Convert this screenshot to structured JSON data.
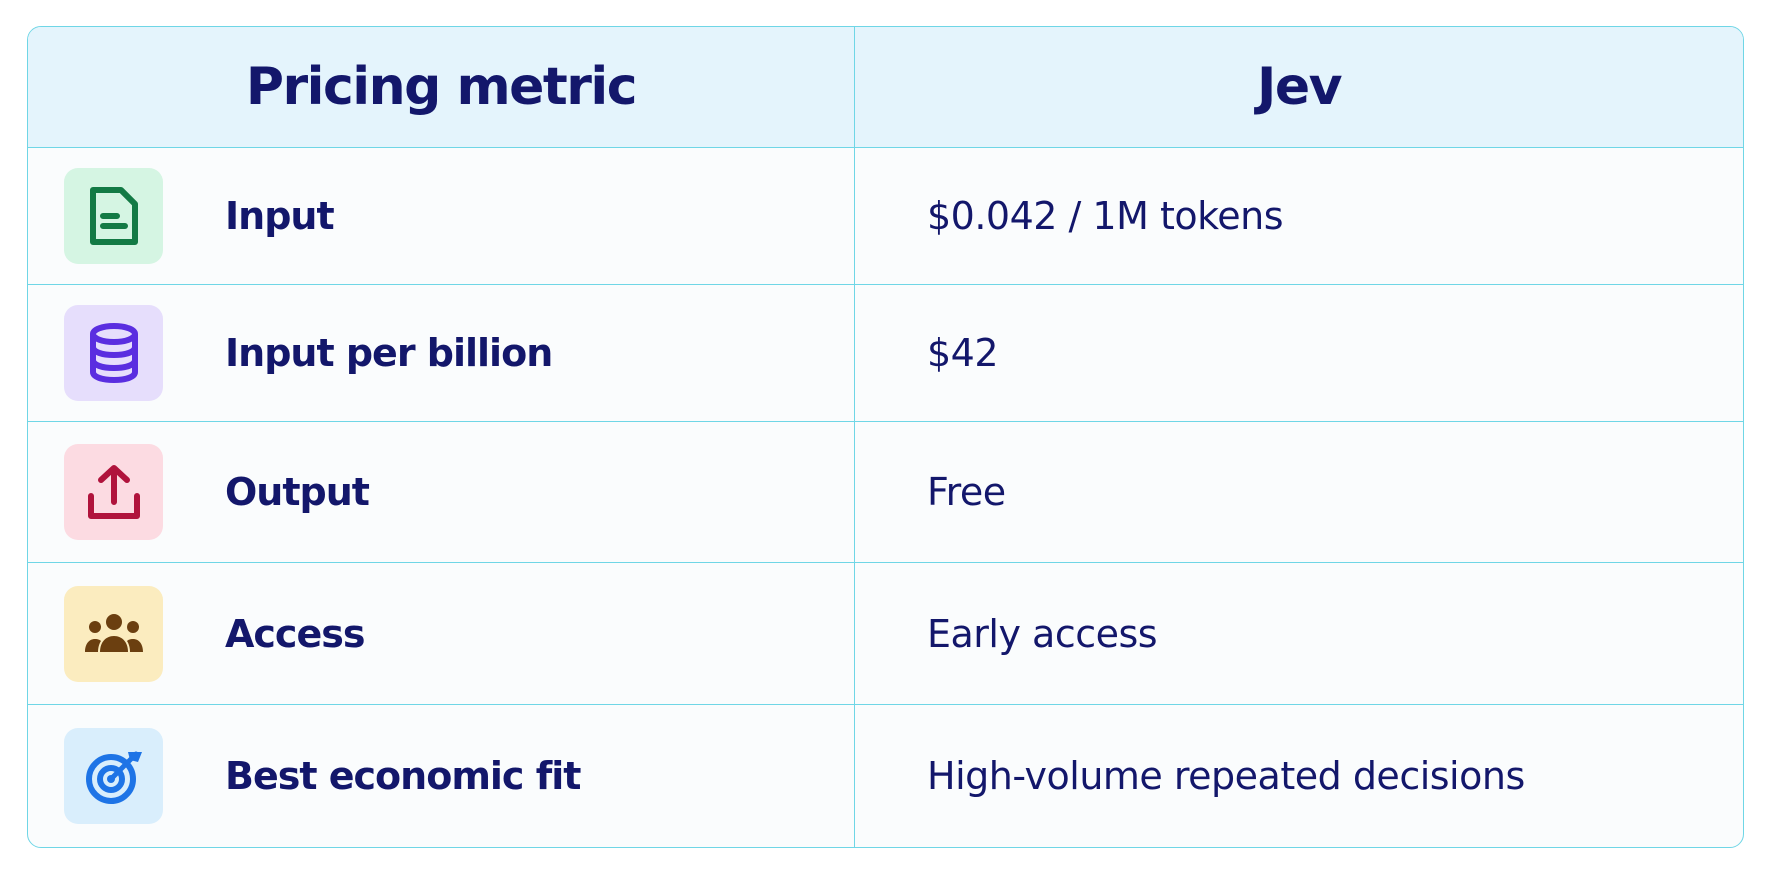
{
  "table": {
    "header": [
      "Pricing metric",
      "Jev"
    ],
    "rows": [
      [
        "Input",
        "$0.042 / 1M tokens"
      ],
      [
        "Input per billion",
        "$42"
      ],
      [
        "Output",
        "Free"
      ],
      [
        "Access",
        "Early access"
      ],
      [
        "Best economic fit",
        "High-volume repeated decisions"
      ]
    ]
  }
}
